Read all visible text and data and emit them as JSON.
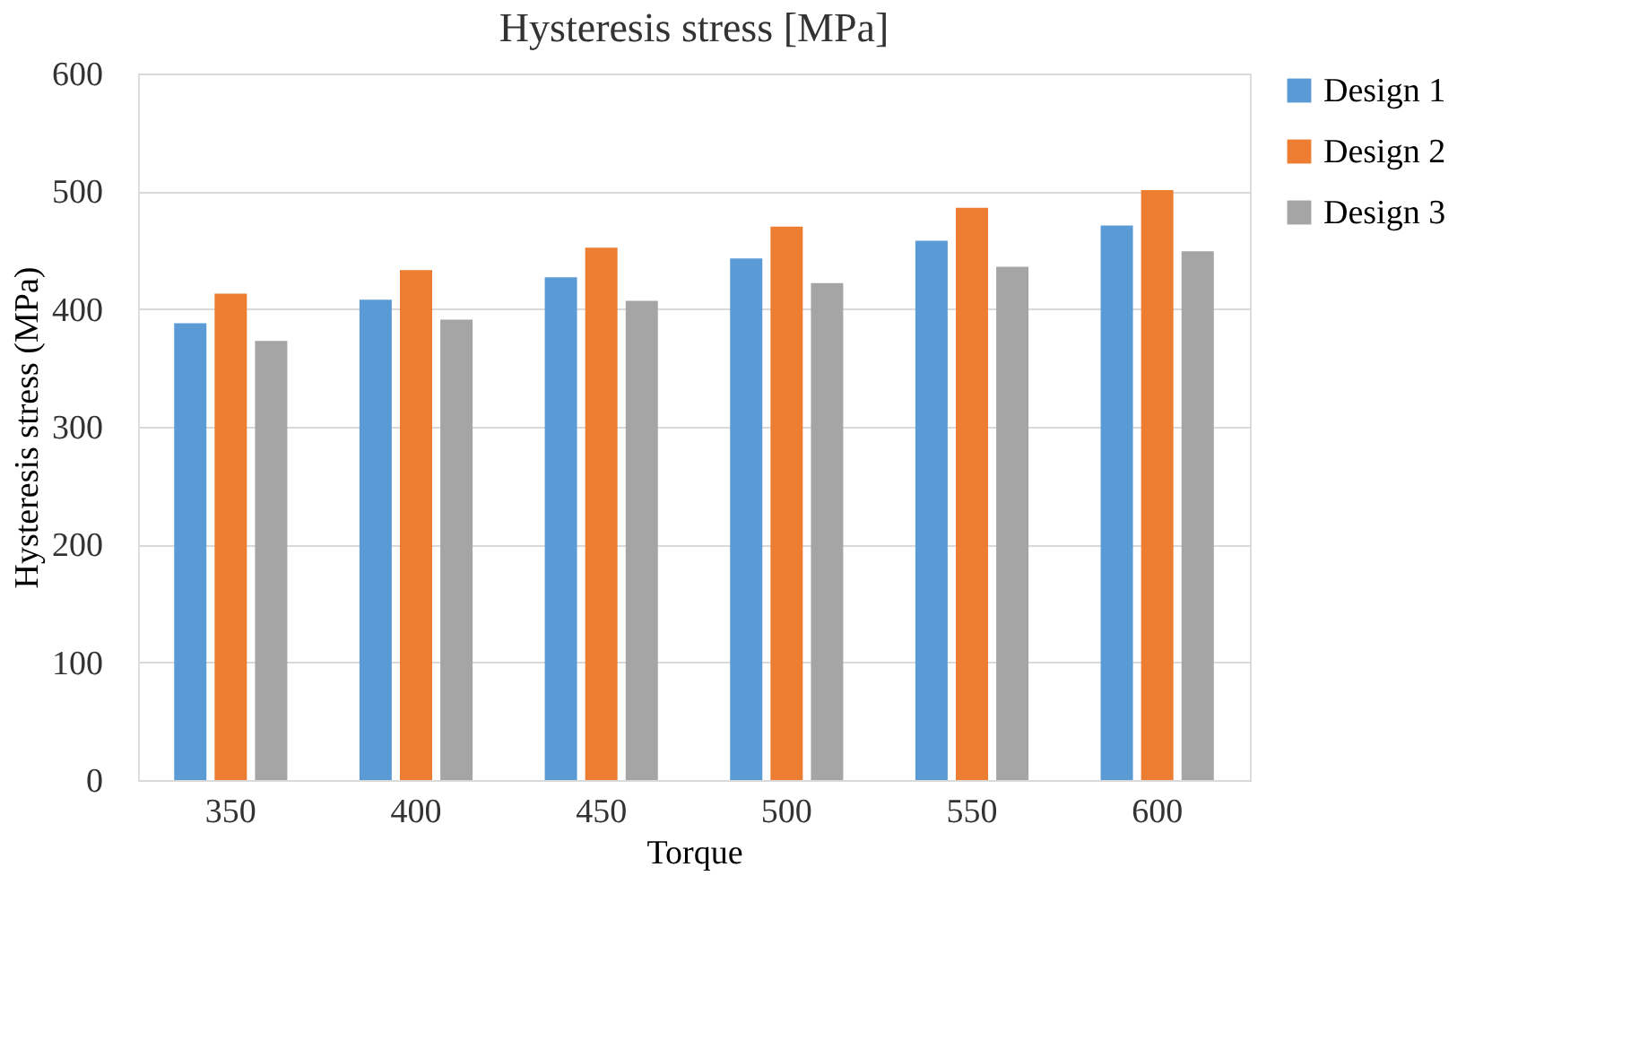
{
  "chart_data": {
    "type": "bar",
    "title": "Hysteresis stress [MPa]",
    "xlabel": "Torque",
    "ylabel": "Hysteresis stress (MPa)",
    "categories": [
      "350",
      "400",
      "450",
      "500",
      "550",
      "600"
    ],
    "series": [
      {
        "name": "Design 1",
        "color": "#5b9bd5",
        "values": [
          388,
          408,
          427,
          443,
          458,
          471
        ]
      },
      {
        "name": "Design 2",
        "color": "#ed7d31",
        "values": [
          413,
          433,
          452,
          470,
          486,
          501
        ]
      },
      {
        "name": "Design 3",
        "color": "#a5a5a5",
        "values": [
          373,
          391,
          407,
          422,
          436,
          449
        ]
      }
    ],
    "ylim": [
      0,
      600
    ],
    "yticks": [
      0,
      100,
      200,
      300,
      400,
      500,
      600
    ],
    "grid": "y",
    "legend": "right"
  }
}
